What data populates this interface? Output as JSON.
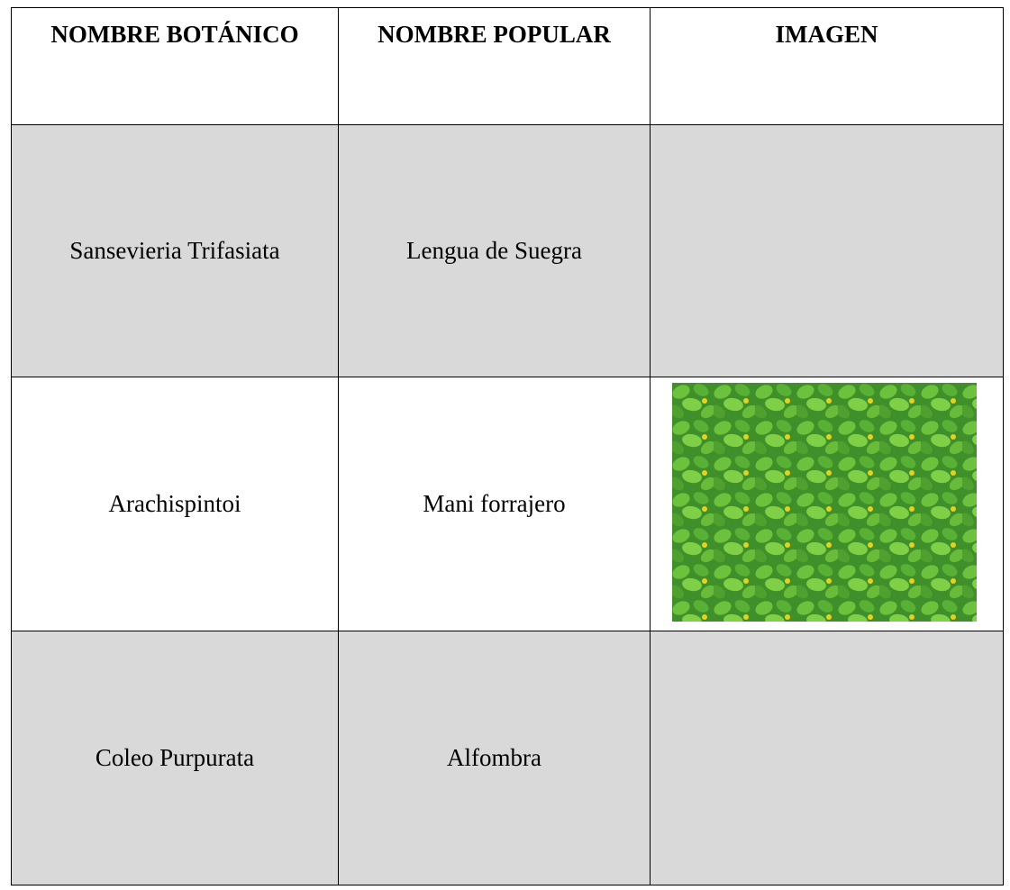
{
  "table": {
    "headers": [
      "NOMBRE BOTÁNICO",
      "NOMBRE POPULAR",
      "IMAGEN"
    ],
    "rows": [
      [
        "Sansevieria Trifasiata",
        "Lengua de Suegra"
      ],
      [
        "Arachispintoi",
        "Mani forrajero"
      ],
      [
        "Coleo Purpurata",
        "Alfombra"
      ]
    ]
  }
}
